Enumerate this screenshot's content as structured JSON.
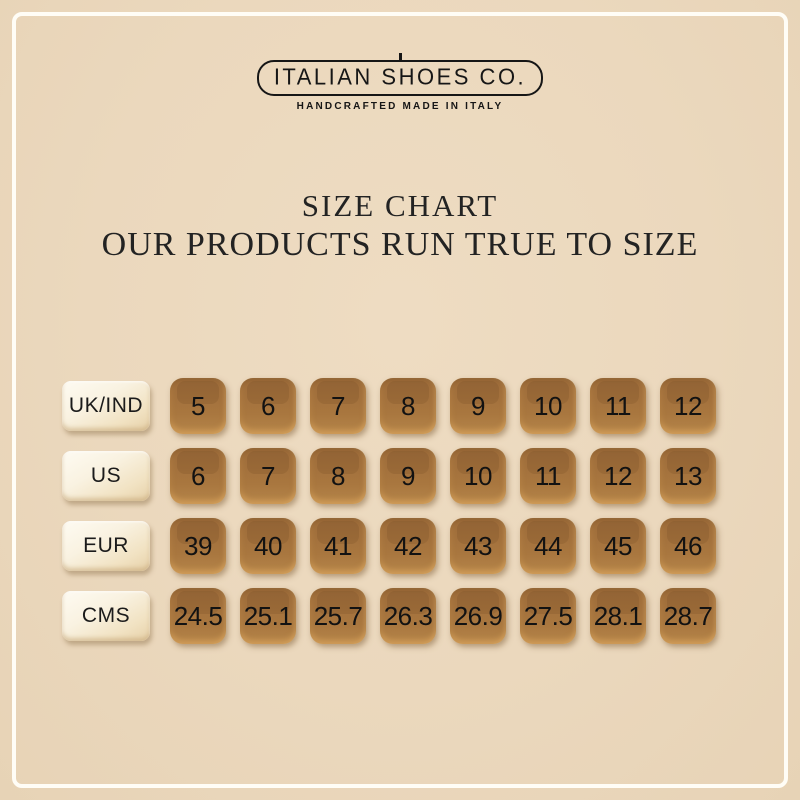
{
  "logo": {
    "brand": "ITALIAN SHOES CO.",
    "tagline": "HANDCRAFTED MADE IN ITALY"
  },
  "heading": {
    "title": "SIZE CHART",
    "subtitle": "OUR PRODUCTS RUN TRUE TO SIZE"
  },
  "chart_data": {
    "type": "table",
    "title": "SIZE CHART",
    "row_headers": [
      "UK/IND",
      "US",
      "EUR",
      "CMS"
    ],
    "rows": [
      {
        "label": "UK/IND",
        "values": [
          "5",
          "6",
          "7",
          "8",
          "9",
          "10",
          "11",
          "12"
        ]
      },
      {
        "label": "US",
        "values": [
          "6",
          "7",
          "8",
          "9",
          "10",
          "11",
          "12",
          "13"
        ]
      },
      {
        "label": "EUR",
        "values": [
          "39",
          "40",
          "41",
          "42",
          "43",
          "44",
          "45",
          "46"
        ]
      },
      {
        "label": "CMS",
        "values": [
          "24.5",
          "25.1",
          "25.7",
          "26.3",
          "26.9",
          "27.5",
          "28.1",
          "28.7"
        ]
      }
    ]
  },
  "colors": {
    "background": "#ebd8bd",
    "frame": "#fffdf6",
    "tile_brown": "#a6743e",
    "tile_cream": "#f8f0dd",
    "text": "#1c1c1c"
  }
}
